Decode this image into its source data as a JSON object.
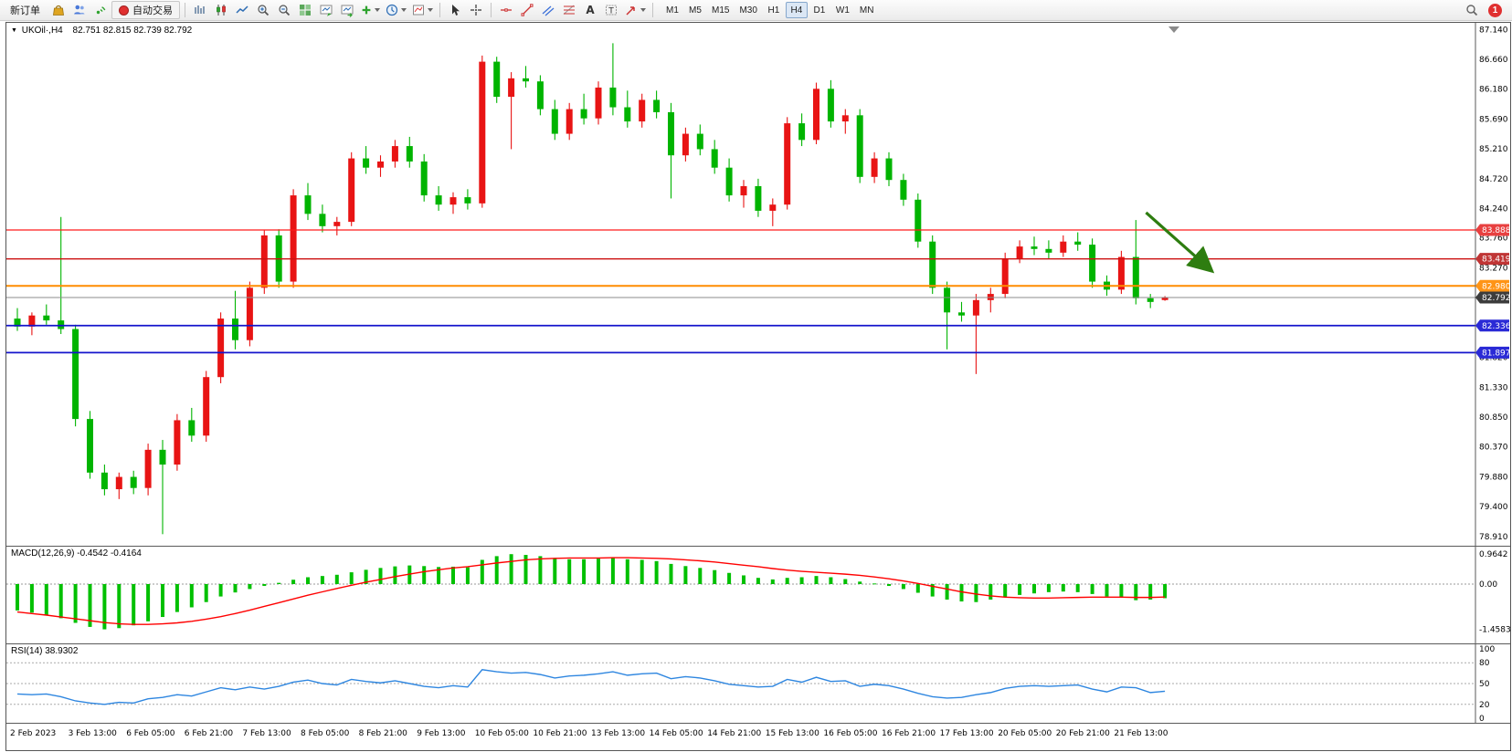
{
  "toolbar": {
    "new_order_label": "新订单",
    "autotrading_label": "自动交易",
    "timeframes": [
      "M1",
      "M5",
      "M15",
      "M30",
      "H1",
      "H4",
      "D1",
      "W1",
      "MN"
    ],
    "active_timeframe": "H4",
    "notification_count": "1",
    "icon_names": [
      "market-icon",
      "community-icon",
      "broadcast-icon",
      "autotrading-status-icon",
      "bar-chart-icon",
      "candlestick-chart-icon",
      "line-chart-icon",
      "zoom-in-icon",
      "zoom-out-icon",
      "tile-windows-icon",
      "auto-scroll-icon",
      "chart-shift-icon",
      "new-chart-icon",
      "period-selector-icon",
      "templates-icon",
      "cursor-icon",
      "crosshair-icon",
      "horizontal-line-icon",
      "trendline-icon",
      "channel-icon",
      "fibonacci-icon",
      "text-icon",
      "text-label-icon",
      "arrow-object-icon",
      "search-icon"
    ]
  },
  "chart": {
    "symbol_label": "UKOil·,H4",
    "ohlc_values": "82.751 82.815 82.739 82.792",
    "price_labels": [
      "87.140",
      "86.660",
      "86.180",
      "85.690",
      "85.210",
      "84.720",
      "84.240",
      "83.760",
      "83.270",
      "82.790",
      "82.300",
      "81.820",
      "81.330",
      "80.850",
      "80.370",
      "79.880",
      "79.400",
      "78.910"
    ],
    "time_labels": [
      "2 Feb 2023",
      "3 Feb 13:00",
      "6 Feb 05:00",
      "6 Feb 21:00",
      "7 Feb 13:00",
      "8 Feb 05:00",
      "8 Feb 21:00",
      "9 Feb 13:00",
      "10 Feb 05:00",
      "10 Feb 21:00",
      "13 Feb 13:00",
      "14 Feb 05:00",
      "14 Feb 21:00",
      "15 Feb 13:00",
      "16 Feb 05:00",
      "16 Feb 21:00",
      "17 Feb 13:00",
      "20 Feb 05:00",
      "20 Feb 21:00",
      "21 Feb 13:00"
    ]
  },
  "macd_panel": {
    "label": "MACD(12,26,9) -0.4542 -0.4164",
    "axis_labels": [
      "0.9642",
      "0.00",
      "-1.4583"
    ]
  },
  "rsi_panel": {
    "label": "RSI(14) 38.9302",
    "axis_labels": [
      "100",
      "80",
      "50",
      "20",
      "0"
    ]
  },
  "chart_data": {
    "type": "candlestick",
    "symbol": "UKOil",
    "timeframe": "H4",
    "up_color": "#e81414",
    "down_color": "#00b400",
    "price_range": [
      78.91,
      87.14
    ],
    "candles": [
      [
        82.45,
        82.62,
        82.25,
        82.32
      ],
      [
        82.32,
        82.55,
        82.18,
        82.5
      ],
      [
        82.5,
        82.68,
        82.35,
        82.42
      ],
      [
        82.42,
        84.1,
        82.2,
        82.28
      ],
      [
        82.28,
        82.35,
        80.7,
        80.82
      ],
      [
        80.82,
        80.95,
        79.85,
        79.95
      ],
      [
        79.95,
        80.08,
        79.58,
        79.68
      ],
      [
        79.68,
        79.95,
        79.52,
        79.88
      ],
      [
        79.88,
        79.98,
        79.6,
        79.7
      ],
      [
        79.7,
        80.42,
        79.58,
        80.32
      ],
      [
        80.32,
        80.48,
        78.95,
        80.08
      ],
      [
        80.08,
        80.9,
        79.98,
        80.8
      ],
      [
        80.8,
        81.0,
        80.45,
        80.55
      ],
      [
        80.55,
        81.6,
        80.45,
        81.5
      ],
      [
        81.5,
        82.55,
        81.4,
        82.45
      ],
      [
        82.45,
        82.9,
        81.95,
        82.1
      ],
      [
        82.1,
        83.05,
        82.0,
        82.95
      ],
      [
        82.95,
        83.88,
        82.85,
        83.8
      ],
      [
        83.8,
        83.9,
        82.95,
        83.05
      ],
      [
        83.05,
        84.55,
        82.95,
        84.45
      ],
      [
        84.45,
        84.65,
        84.05,
        84.15
      ],
      [
        84.15,
        84.3,
        83.85,
        83.95
      ],
      [
        83.95,
        84.1,
        83.8,
        84.02
      ],
      [
        84.02,
        85.15,
        83.95,
        85.05
      ],
      [
        85.05,
        85.25,
        84.8,
        84.9
      ],
      [
        84.9,
        85.1,
        84.75,
        85.0
      ],
      [
        85.0,
        85.35,
        84.9,
        85.25
      ],
      [
        85.25,
        85.4,
        84.9,
        85.0
      ],
      [
        85.0,
        85.12,
        84.35,
        84.45
      ],
      [
        84.45,
        84.6,
        84.2,
        84.3
      ],
      [
        84.3,
        84.5,
        84.15,
        84.42
      ],
      [
        84.42,
        84.55,
        84.22,
        84.32
      ],
      [
        84.32,
        86.72,
        84.25,
        86.62
      ],
      [
        86.62,
        86.7,
        85.95,
        86.05
      ],
      [
        86.05,
        86.45,
        85.2,
        86.35
      ],
      [
        86.35,
        86.55,
        86.2,
        86.3
      ],
      [
        86.3,
        86.4,
        85.75,
        85.85
      ],
      [
        85.85,
        86.0,
        85.35,
        85.45
      ],
      [
        85.45,
        85.95,
        85.35,
        85.85
      ],
      [
        85.85,
        86.1,
        85.6,
        85.7
      ],
      [
        85.7,
        86.3,
        85.6,
        86.2
      ],
      [
        86.2,
        86.92,
        85.75,
        85.88
      ],
      [
        85.88,
        86.15,
        85.55,
        85.65
      ],
      [
        85.65,
        86.1,
        85.55,
        86.0
      ],
      [
        86.0,
        86.15,
        85.7,
        85.8
      ],
      [
        85.8,
        85.95,
        84.4,
        85.1
      ],
      [
        85.1,
        85.55,
        85.0,
        85.45
      ],
      [
        85.45,
        85.6,
        85.1,
        85.2
      ],
      [
        85.2,
        85.35,
        84.8,
        84.9
      ],
      [
        84.9,
        85.05,
        84.35,
        84.45
      ],
      [
        84.45,
        84.7,
        84.25,
        84.6
      ],
      [
        84.6,
        84.72,
        84.1,
        84.2
      ],
      [
        84.2,
        84.4,
        83.95,
        84.3
      ],
      [
        84.3,
        85.72,
        84.22,
        85.62
      ],
      [
        85.62,
        85.78,
        85.25,
        85.35
      ],
      [
        85.35,
        86.28,
        85.28,
        86.18
      ],
      [
        86.18,
        86.32,
        85.55,
        85.65
      ],
      [
        85.65,
        85.85,
        85.45,
        85.75
      ],
      [
        85.75,
        85.85,
        84.65,
        84.75
      ],
      [
        84.75,
        85.15,
        84.65,
        85.05
      ],
      [
        85.05,
        85.15,
        84.6,
        84.7
      ],
      [
        84.7,
        84.8,
        84.28,
        84.38
      ],
      [
        84.38,
        84.48,
        83.6,
        83.7
      ],
      [
        83.7,
        83.8,
        82.85,
        82.95
      ],
      [
        82.95,
        83.05,
        81.95,
        82.55
      ],
      [
        82.55,
        82.72,
        82.4,
        82.5
      ],
      [
        82.5,
        82.85,
        81.55,
        82.75
      ],
      [
        82.75,
        82.95,
        82.55,
        82.85
      ],
      [
        82.85,
        83.52,
        82.78,
        83.42
      ],
      [
        83.42,
        83.72,
        83.35,
        83.62
      ],
      [
        83.62,
        83.78,
        83.48,
        83.58
      ],
      [
        83.58,
        83.72,
        83.42,
        83.52
      ],
      [
        83.52,
        83.8,
        83.45,
        83.7
      ],
      [
        83.7,
        83.85,
        83.55,
        83.65
      ],
      [
        83.65,
        83.75,
        82.95,
        83.05
      ],
      [
        83.05,
        83.15,
        82.82,
        82.92
      ],
      [
        82.92,
        83.55,
        82.85,
        83.45
      ],
      [
        83.45,
        84.05,
        82.68,
        82.78
      ],
      [
        82.78,
        82.85,
        82.62,
        82.72
      ],
      [
        82.751,
        82.815,
        82.739,
        82.792
      ]
    ],
    "hlines": [
      {
        "value": 83.888,
        "label": "83.888",
        "color": "#ff1a1a",
        "badge": "#e84040",
        "width": 1.3
      },
      {
        "value": 83.419,
        "label": "83.419",
        "color": "#cc1111",
        "badge": "#c03535",
        "width": 1.3
      },
      {
        "value": 82.98,
        "label": "82.980",
        "color": "#ff8c00",
        "badge": "#ff9416",
        "width": 2
      },
      {
        "value": 82.792,
        "label": "82.792",
        "color": "#8c8c8c",
        "badge": "#3c3c3c",
        "width": 1.1,
        "role": "bid-price"
      },
      {
        "value": 82.336,
        "label": "82.336",
        "color": "#1414cc",
        "badge": "#2a2ad6",
        "width": 1.8
      },
      {
        "value": 81.897,
        "label": "81.897",
        "color": "#1414cc",
        "badge": "#2a2ad6",
        "width": 1.8
      }
    ],
    "indicators": [
      {
        "name": "MACD",
        "params": [
          12,
          26,
          9
        ],
        "current": [
          -0.4542,
          -0.4164
        ],
        "range": [
          -1.4583,
          0.9642
        ],
        "histogram": [
          -0.85,
          -0.92,
          -1.0,
          -1.1,
          -1.25,
          -1.38,
          -1.4583,
          -1.42,
          -1.33,
          -1.2,
          -1.06,
          -0.9,
          -0.75,
          -0.58,
          -0.4,
          -0.27,
          -0.16,
          -0.06,
          0.04,
          0.14,
          0.22,
          0.26,
          0.3,
          0.38,
          0.46,
          0.52,
          0.57,
          0.6,
          0.58,
          0.55,
          0.56,
          0.54,
          0.78,
          0.9,
          0.9642,
          0.94,
          0.9,
          0.84,
          0.8,
          0.8,
          0.82,
          0.85,
          0.8,
          0.78,
          0.74,
          0.65,
          0.58,
          0.52,
          0.45,
          0.36,
          0.28,
          0.2,
          0.15,
          0.2,
          0.22,
          0.26,
          0.22,
          0.16,
          0.08,
          0.02,
          -0.06,
          -0.16,
          -0.28,
          -0.4,
          -0.5,
          -0.56,
          -0.58,
          -0.5,
          -0.42,
          -0.35,
          -0.3,
          -0.26,
          -0.24,
          -0.26,
          -0.32,
          -0.4,
          -0.44,
          -0.52,
          -0.5,
          -0.4542
        ],
        "signal": [
          -0.9,
          -0.95,
          -1.0,
          -1.06,
          -1.12,
          -1.18,
          -1.24,
          -1.28,
          -1.3,
          -1.3,
          -1.28,
          -1.25,
          -1.2,
          -1.13,
          -1.05,
          -0.95,
          -0.84,
          -0.72,
          -0.6,
          -0.48,
          -0.36,
          -0.25,
          -0.14,
          -0.04,
          0.06,
          0.15,
          0.24,
          0.32,
          0.4,
          0.46,
          0.52,
          0.56,
          0.62,
          0.68,
          0.73,
          0.78,
          0.81,
          0.83,
          0.84,
          0.84,
          0.84,
          0.85,
          0.85,
          0.84,
          0.83,
          0.81,
          0.78,
          0.75,
          0.71,
          0.66,
          0.61,
          0.56,
          0.5,
          0.45,
          0.41,
          0.38,
          0.35,
          0.32,
          0.28,
          0.23,
          0.17,
          0.1,
          0.02,
          -0.07,
          -0.16,
          -0.25,
          -0.32,
          -0.38,
          -0.42,
          -0.44,
          -0.45,
          -0.45,
          -0.44,
          -0.43,
          -0.42,
          -0.42,
          -0.42,
          -0.43,
          -0.43,
          -0.4164
        ],
        "histogram_color": "#00c000",
        "signal_color": "#ff0000"
      },
      {
        "name": "RSI",
        "params": [
          14
        ],
        "current": 38.9302,
        "levels": [
          80,
          50,
          20
        ],
        "line_color": "#2e86e0",
        "values": [
          35,
          34,
          35,
          31,
          25,
          22,
          20,
          23,
          22,
          28,
          30,
          34,
          32,
          38,
          44,
          41,
          45,
          42,
          46,
          52,
          55,
          50,
          48,
          56,
          53,
          51,
          54,
          50,
          46,
          44,
          47,
          45,
          70,
          67,
          65,
          66,
          63,
          58,
          61,
          62,
          64,
          67,
          62,
          64,
          65,
          57,
          60,
          58,
          54,
          49,
          47,
          45,
          46,
          56,
          52,
          59,
          53,
          54,
          46,
          49,
          47,
          42,
          36,
          31,
          29,
          30,
          34,
          37,
          43,
          46,
          47,
          46,
          47,
          48,
          42,
          38,
          45,
          44,
          37,
          38.93
        ]
      }
    ],
    "annotation_arrow": {
      "from_index": 77.7,
      "from_price": 84.17,
      "to_index": 82.1,
      "to_price": 83.25,
      "color": "#2e7d10"
    }
  }
}
